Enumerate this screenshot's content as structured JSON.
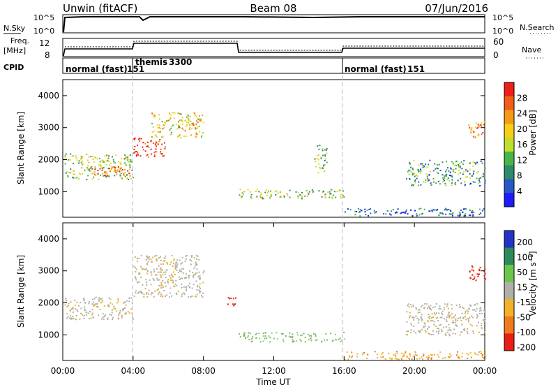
{
  "header": {
    "left": "Unwin (fitACF)",
    "center": "Beam 08",
    "right": "07/Jun/2016"
  },
  "strip_sky": {
    "label": "N.Sky",
    "right_label": "N.Search",
    "left_ticks": [
      "10^5",
      "10^0"
    ],
    "right_ticks": [
      "10^5",
      "10^0"
    ]
  },
  "strip_freq": {
    "label": "Freq.",
    "unit": "[MHz]",
    "right_label": "Nave",
    "left_ticks": [
      "12",
      "8"
    ],
    "right_ticks": [
      "60",
      "0"
    ]
  },
  "cpid": {
    "label": "CPID",
    "modes": [
      {
        "name": "normal (fast)",
        "id": "151",
        "start_hour": 0,
        "end_hour": 4
      },
      {
        "name": "themis",
        "id": "3300",
        "start_hour": 4,
        "end_hour": 16
      },
      {
        "name": "normal (fast)",
        "id": "151",
        "start_hour": 16,
        "end_hour": 24
      }
    ]
  },
  "power_panel": {
    "colorbar_label": "Power [dB]",
    "colorbar_ticks": [
      "28",
      "24",
      "20",
      "16",
      "12",
      "8",
      "4"
    ],
    "colors": [
      "#1c1cff",
      "#2a57c8",
      "#2f8a6a",
      "#48b548",
      "#bfe02a",
      "#f7cf16",
      "#f59a16",
      "#f25e16",
      "#ef1e16"
    ]
  },
  "velocity_panel": {
    "colorbar_label": "Velocity [m s⁻¹]",
    "colorbar_ticks": [
      "200",
      "100",
      "50",
      "15",
      "-15",
      "-50",
      "-100",
      "-200"
    ],
    "colors": [
      "#2333c8",
      "#2d8a5a",
      "#69c84a",
      "#b0b0a8",
      "#f2b126",
      "#f07a1e",
      "#ea1e14"
    ]
  },
  "axes": {
    "ylabel": "Slant Range [km]",
    "xlabel": "Time UT",
    "yticks": [
      "1000",
      "2000",
      "3000",
      "4000"
    ],
    "xticks": [
      "00:00",
      "04:00",
      "08:00",
      "12:00",
      "16:00",
      "20:00",
      "00:00"
    ]
  },
  "chart_data": {
    "type": "heatmap",
    "title": "Unwin (fitACF) Beam 08 07/Jun/2016",
    "xlabel": "Time UT",
    "ylabel": "Slant Range [km]",
    "xlim": [
      0,
      24
    ],
    "ylim": [
      200,
      4500
    ],
    "power_regions": [
      {
        "t": [
          0.1,
          4.0
        ],
        "r": [
          1400,
          2200
        ],
        "value_db": 14
      },
      {
        "t": [
          1.5,
          3.8
        ],
        "r": [
          1500,
          1800
        ],
        "value_db": 26
      },
      {
        "t": [
          4.0,
          5.8
        ],
        "r": [
          2100,
          2700
        ],
        "value_db": 28
      },
      {
        "t": [
          5.0,
          8.0
        ],
        "r": [
          2700,
          3500
        ],
        "value_db": 18
      },
      {
        "t": [
          10.0,
          16.0
        ],
        "r": [
          800,
          1100
        ],
        "value_db": 14
      },
      {
        "t": [
          14.3,
          15.0
        ],
        "r": [
          1600,
          2500
        ],
        "value_db": 12
      },
      {
        "t": [
          16.0,
          24.0
        ],
        "r": [
          250,
          500
        ],
        "value_db": 6
      },
      {
        "t": [
          19.5,
          24.0
        ],
        "r": [
          1200,
          2000
        ],
        "value_db": 10
      },
      {
        "t": [
          23.0,
          24.0
        ],
        "r": [
          2700,
          3200
        ],
        "value_db": 22
      }
    ],
    "velocity_regions": [
      {
        "t": [
          0.1,
          4.0
        ],
        "r": [
          1500,
          2200
        ],
        "value_ms": 0
      },
      {
        "t": [
          4.0,
          8.0
        ],
        "r": [
          2200,
          3500
        ],
        "value_ms": 0
      },
      {
        "t": [
          9.2,
          9.8
        ],
        "r": [
          1900,
          2200
        ],
        "value_ms": -200
      },
      {
        "t": [
          10.0,
          16.0
        ],
        "r": [
          800,
          1100
        ],
        "value_ms": 30
      },
      {
        "t": [
          16.0,
          24.0
        ],
        "r": [
          250,
          500
        ],
        "value_ms": -40
      },
      {
        "t": [
          19.5,
          24.0
        ],
        "r": [
          1000,
          2000
        ],
        "value_ms": 0
      },
      {
        "t": [
          23.0,
          24.0
        ],
        "r": [
          2700,
          3200
        ],
        "value_ms": -200
      }
    ]
  }
}
